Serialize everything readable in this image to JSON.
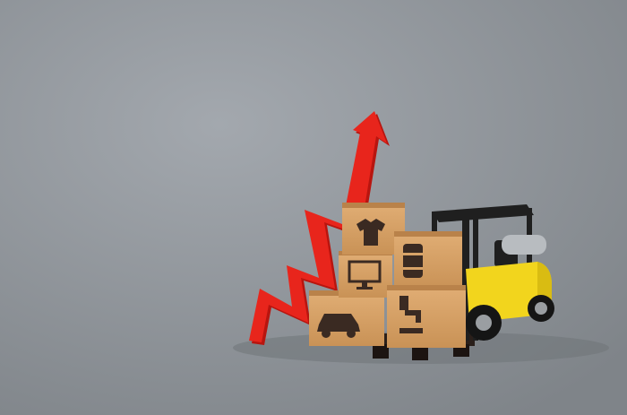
{
  "scene": {
    "background": "#8e9399",
    "background_light": "#a3a8ae",
    "arrow": {
      "color": "#e8251c",
      "shadow": "#b8150f",
      "direction": "up"
    },
    "forklift": {
      "body_color": "#f2d51d",
      "frame_color": "#1f1f1f",
      "tank_color": "#b8bcc0"
    },
    "boxes": {
      "color": "#d8a368",
      "dark": "#b9824a",
      "icons": [
        {
          "name": "clothing-icon"
        },
        {
          "name": "monitor-icon"
        },
        {
          "name": "oil-barrel-icon"
        },
        {
          "name": "car-icon"
        },
        {
          "name": "faucet-icon"
        }
      ]
    },
    "pallet_color": "#2a1f1a"
  }
}
